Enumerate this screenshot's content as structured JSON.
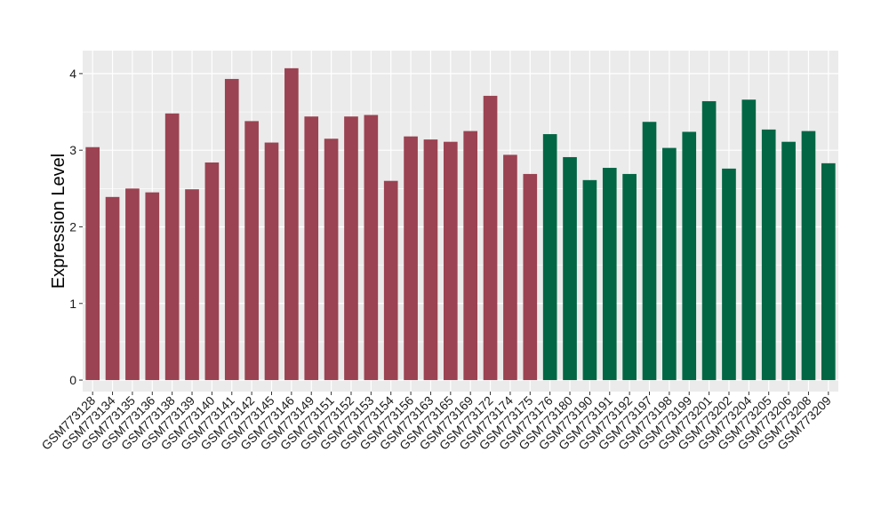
{
  "chart_data": {
    "type": "bar",
    "xlabel": "",
    "ylabel": "Expression Level",
    "ylim": [
      -0.15,
      4.3
    ],
    "yticks": [
      0,
      1,
      2,
      3,
      4
    ],
    "ytick_labels": [
      "0",
      "1",
      "2",
      "3",
      "4"
    ],
    "grid": true,
    "legend": "none",
    "colors": {
      "group_1": "#9b4352",
      "group_2": "#026645",
      "panel": "#ebebeb",
      "grid": "#ffffff"
    },
    "categories": [
      "GSM773128",
      "GSM773134",
      "GSM773135",
      "GSM773136",
      "GSM773138",
      "GSM773139",
      "GSM773140",
      "GSM773141",
      "GSM773142",
      "GSM773145",
      "GSM773146",
      "GSM773149",
      "GSM773151",
      "GSM773152",
      "GSM773153",
      "GSM773154",
      "GSM773156",
      "GSM773163",
      "GSM773165",
      "GSM773169",
      "GSM773172",
      "GSM773174",
      "GSM773175",
      "GSM773176",
      "GSM773180",
      "GSM773190",
      "GSM773191",
      "GSM773192",
      "GSM773197",
      "GSM773198",
      "GSM773199",
      "GSM773201",
      "GSM773202",
      "GSM773204",
      "GSM773205",
      "GSM773206",
      "GSM773208",
      "GSM773209"
    ],
    "values": [
      3.04,
      2.39,
      2.5,
      2.45,
      3.48,
      2.49,
      2.84,
      3.93,
      3.38,
      3.1,
      4.07,
      3.44,
      3.15,
      3.44,
      3.46,
      2.6,
      3.18,
      3.14,
      3.11,
      3.25,
      3.71,
      2.94,
      2.69,
      3.21,
      2.91,
      2.61,
      2.77,
      2.69,
      3.37,
      3.03,
      3.24,
      3.64,
      2.76,
      3.66,
      3.27,
      3.11,
      3.25,
      2.83
    ],
    "groups": [
      1,
      1,
      1,
      1,
      1,
      1,
      1,
      1,
      1,
      1,
      1,
      1,
      1,
      1,
      1,
      1,
      1,
      1,
      1,
      1,
      1,
      1,
      1,
      2,
      2,
      2,
      2,
      2,
      2,
      2,
      2,
      2,
      2,
      2,
      2,
      2,
      2,
      2
    ]
  }
}
